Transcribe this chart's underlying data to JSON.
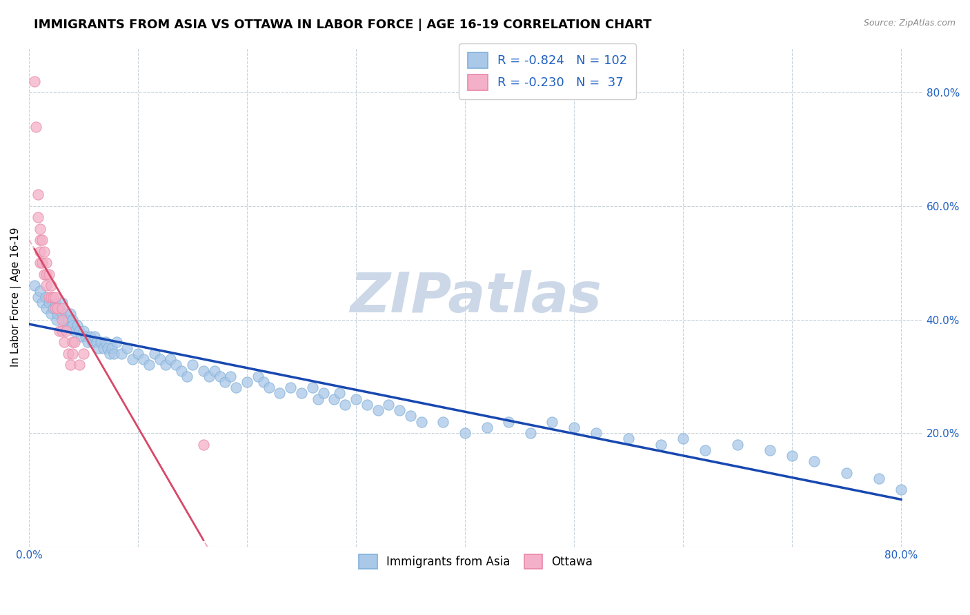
{
  "title": "IMMIGRANTS FROM ASIA VS OTTAWA IN LABOR FORCE | AGE 16-19 CORRELATION CHART",
  "source": "Source: ZipAtlas.com",
  "ylabel": "In Labor Force | Age 16-19",
  "xlim": [
    0.0,
    0.82
  ],
  "ylim": [
    0.0,
    0.88
  ],
  "xticks": [
    0.0,
    0.1,
    0.2,
    0.3,
    0.4,
    0.5,
    0.6,
    0.7,
    0.8
  ],
  "yticks_right": [
    0.0,
    0.2,
    0.4,
    0.6,
    0.8
  ],
  "ytick_right_labels": [
    "",
    "20.0%",
    "40.0%",
    "60.0%",
    "80.0%"
  ],
  "legend_blue_label": "Immigrants from Asia",
  "legend_pink_label": "Ottawa",
  "blue_R": "-0.824",
  "blue_N": "102",
  "pink_R": "-0.230",
  "pink_N": "37",
  "blue_scatter_color": "#aac8e8",
  "blue_scatter_edge": "#80b0d8",
  "pink_scatter_color": "#f4b0c8",
  "pink_scatter_edge": "#e888a8",
  "blue_line_color": "#1848b0",
  "pink_line_color": "#d84868",
  "pink_dash_color": "#f0b0c0",
  "watermark_color": "#ccd8e8",
  "grid_color": "#c8d4dc",
  "title_fontsize": 13,
  "axis_label_fontsize": 11,
  "tick_fontsize": 11,
  "blue_x": [
    0.005,
    0.008,
    0.01,
    0.012,
    0.015,
    0.016,
    0.018,
    0.02,
    0.022,
    0.024,
    0.025,
    0.026,
    0.028,
    0.03,
    0.03,
    0.032,
    0.034,
    0.035,
    0.036,
    0.038,
    0.04,
    0.04,
    0.042,
    0.044,
    0.046,
    0.048,
    0.05,
    0.052,
    0.054,
    0.056,
    0.058,
    0.06,
    0.062,
    0.064,
    0.066,
    0.068,
    0.07,
    0.072,
    0.074,
    0.076,
    0.078,
    0.08,
    0.085,
    0.09,
    0.095,
    0.1,
    0.105,
    0.11,
    0.115,
    0.12,
    0.125,
    0.13,
    0.135,
    0.14,
    0.145,
    0.15,
    0.16,
    0.165,
    0.17,
    0.175,
    0.18,
    0.185,
    0.19,
    0.2,
    0.21,
    0.215,
    0.22,
    0.23,
    0.24,
    0.25,
    0.26,
    0.265,
    0.27,
    0.28,
    0.285,
    0.29,
    0.3,
    0.31,
    0.32,
    0.33,
    0.34,
    0.35,
    0.36,
    0.38,
    0.4,
    0.42,
    0.44,
    0.46,
    0.48,
    0.5,
    0.52,
    0.55,
    0.58,
    0.6,
    0.62,
    0.65,
    0.68,
    0.7,
    0.72,
    0.75,
    0.78,
    0.8
  ],
  "blue_y": [
    0.46,
    0.44,
    0.45,
    0.43,
    0.44,
    0.42,
    0.43,
    0.41,
    0.42,
    0.43,
    0.4,
    0.41,
    0.42,
    0.43,
    0.41,
    0.4,
    0.41,
    0.39,
    0.4,
    0.41,
    0.4,
    0.39,
    0.38,
    0.39,
    0.38,
    0.37,
    0.38,
    0.37,
    0.36,
    0.37,
    0.36,
    0.37,
    0.36,
    0.35,
    0.36,
    0.35,
    0.36,
    0.35,
    0.34,
    0.35,
    0.34,
    0.36,
    0.34,
    0.35,
    0.33,
    0.34,
    0.33,
    0.32,
    0.34,
    0.33,
    0.32,
    0.33,
    0.32,
    0.31,
    0.3,
    0.32,
    0.31,
    0.3,
    0.31,
    0.3,
    0.29,
    0.3,
    0.28,
    0.29,
    0.3,
    0.29,
    0.28,
    0.27,
    0.28,
    0.27,
    0.28,
    0.26,
    0.27,
    0.26,
    0.27,
    0.25,
    0.26,
    0.25,
    0.24,
    0.25,
    0.24,
    0.23,
    0.22,
    0.22,
    0.2,
    0.21,
    0.22,
    0.2,
    0.22,
    0.21,
    0.2,
    0.19,
    0.18,
    0.19,
    0.17,
    0.18,
    0.17,
    0.16,
    0.15,
    0.13,
    0.12,
    0.1
  ],
  "pink_x": [
    0.005,
    0.006,
    0.008,
    0.008,
    0.01,
    0.01,
    0.01,
    0.01,
    0.012,
    0.012,
    0.014,
    0.014,
    0.016,
    0.016,
    0.016,
    0.018,
    0.018,
    0.02,
    0.02,
    0.022,
    0.024,
    0.024,
    0.026,
    0.028,
    0.03,
    0.03,
    0.03,
    0.032,
    0.034,
    0.036,
    0.038,
    0.04,
    0.04,
    0.042,
    0.046,
    0.05,
    0.16
  ],
  "pink_y": [
    0.82,
    0.74,
    0.62,
    0.58,
    0.56,
    0.54,
    0.52,
    0.5,
    0.54,
    0.5,
    0.52,
    0.48,
    0.5,
    0.48,
    0.46,
    0.48,
    0.44,
    0.46,
    0.44,
    0.44,
    0.44,
    0.42,
    0.42,
    0.38,
    0.42,
    0.4,
    0.38,
    0.36,
    0.38,
    0.34,
    0.32,
    0.36,
    0.34,
    0.36,
    0.32,
    0.34,
    0.18
  ]
}
